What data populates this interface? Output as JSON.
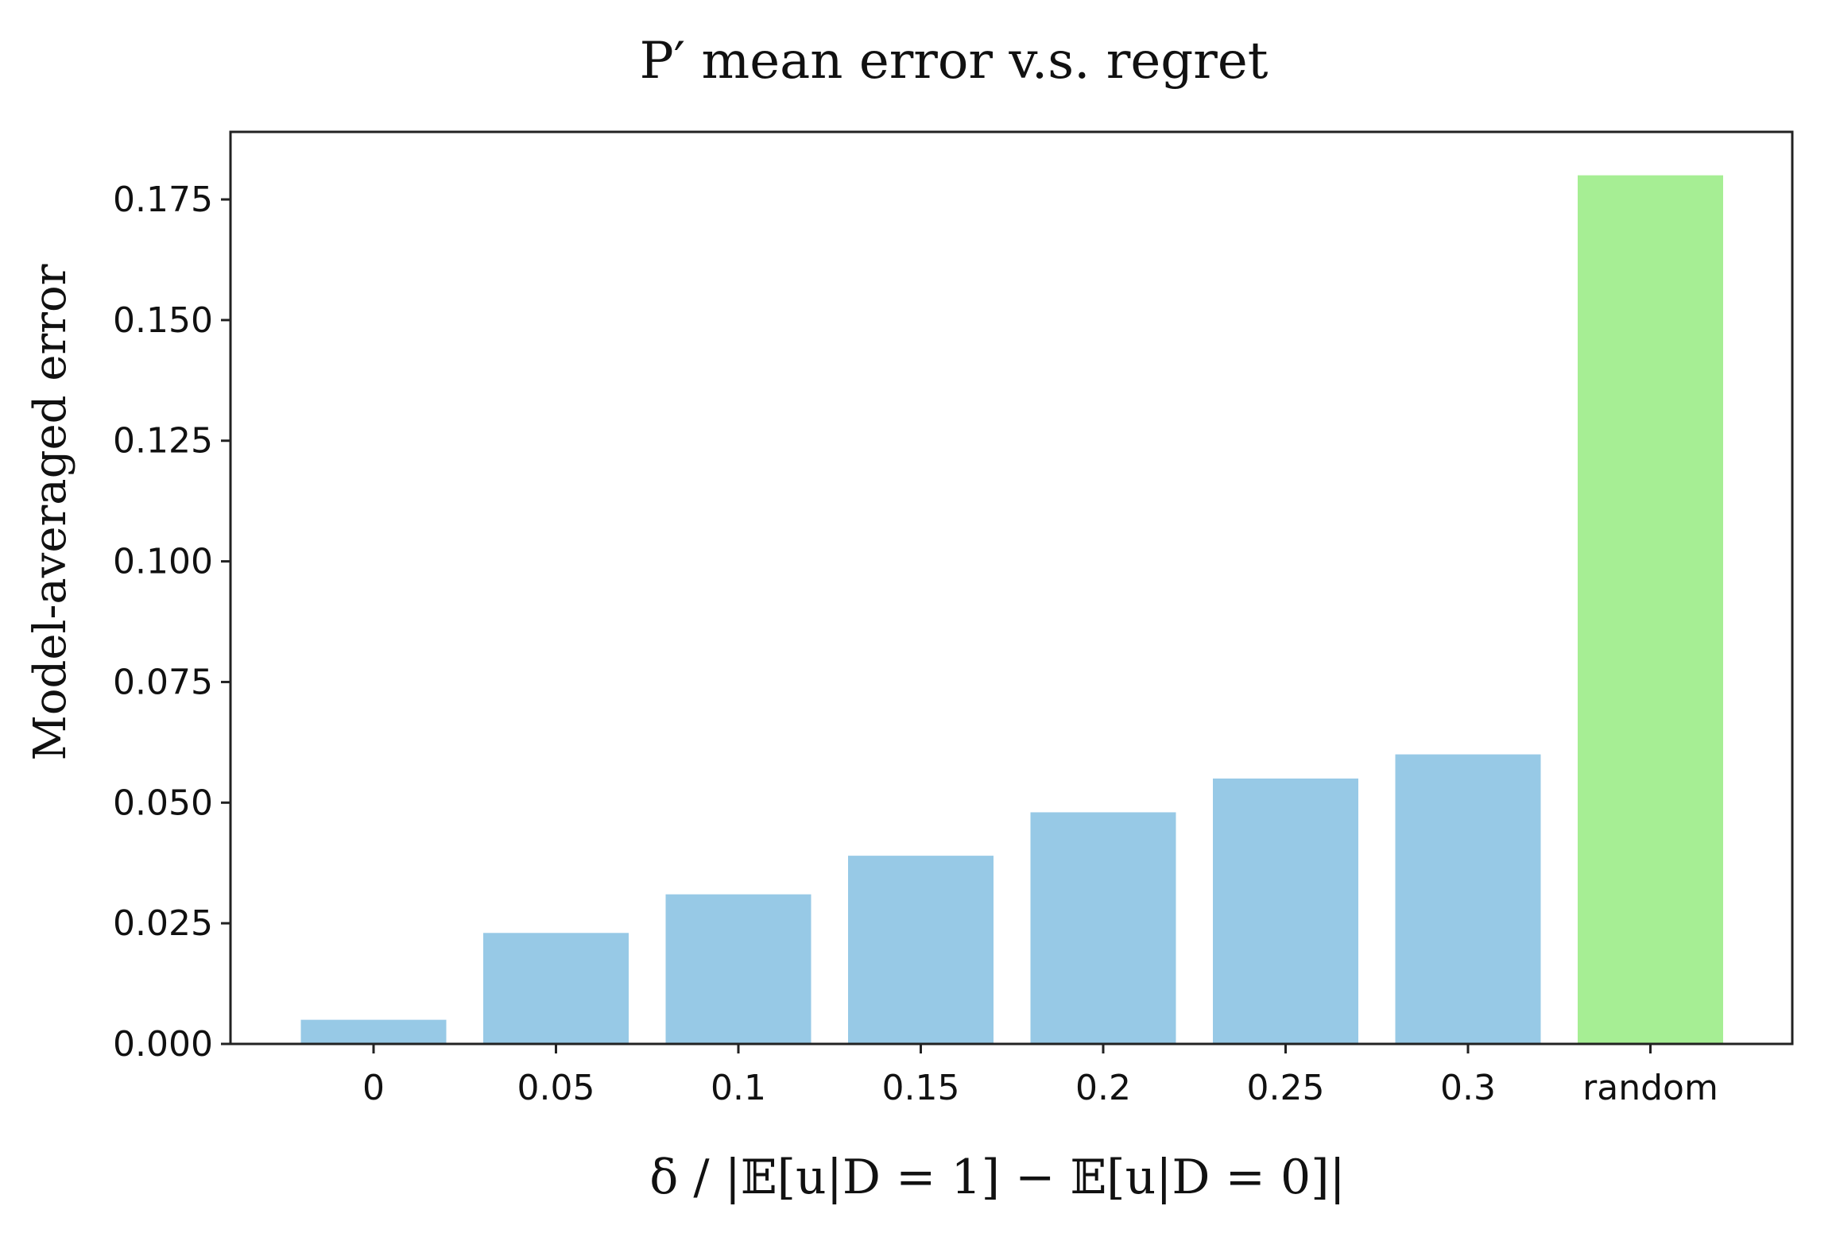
{
  "chart_data": {
    "type": "bar",
    "title": "P′ mean error v.s. regret",
    "xlabel": "δ / |𝔼[u|D = 1] − 𝔼[u|D = 0]|",
    "ylabel": "Model-averaged error",
    "categories": [
      "0",
      "0.05",
      "0.1",
      "0.15",
      "0.2",
      "0.25",
      "0.3",
      "random"
    ],
    "values": [
      0.005,
      0.023,
      0.031,
      0.039,
      0.048,
      0.055,
      0.06,
      0.18
    ],
    "colors": [
      "#97c9e6",
      "#97c9e6",
      "#97c9e6",
      "#97c9e6",
      "#97c9e6",
      "#97c9e6",
      "#97c9e6",
      "#a6ee94"
    ],
    "yticks": [
      "0.000",
      "0.025",
      "0.050",
      "0.075",
      "0.100",
      "0.125",
      "0.150",
      "0.175"
    ],
    "ylim": [
      0,
      0.189
    ],
    "grid": false,
    "legend": "none"
  }
}
